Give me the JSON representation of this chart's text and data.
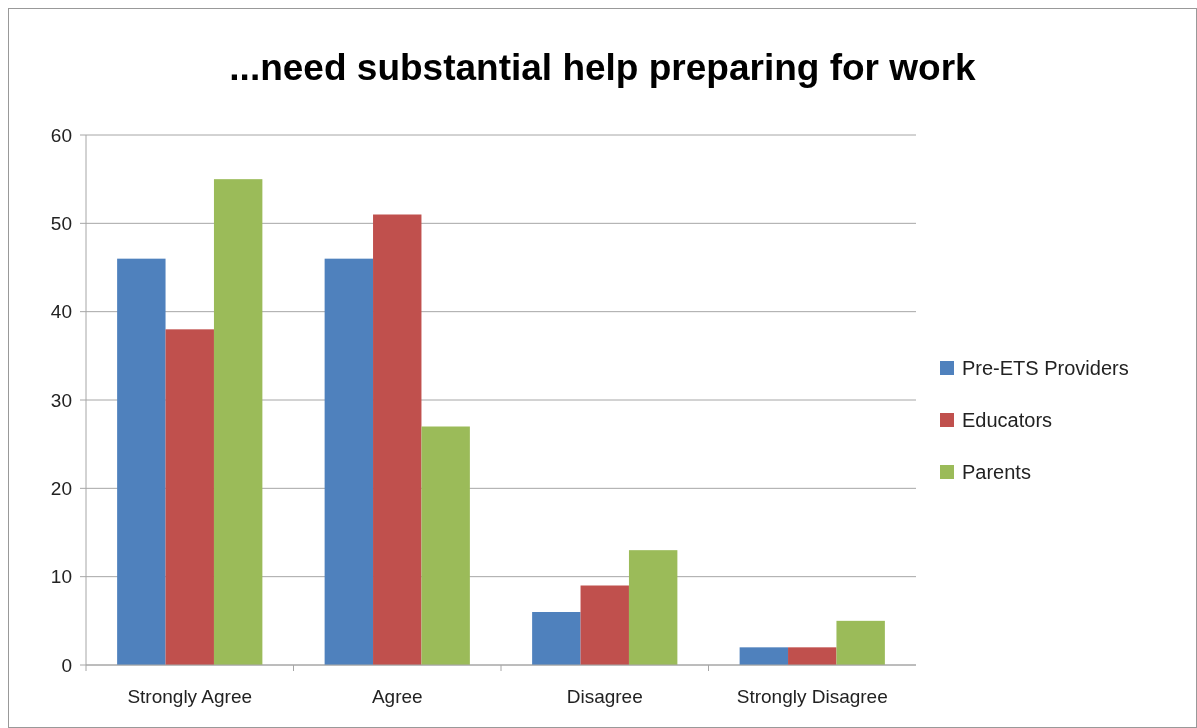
{
  "chart_data": {
    "type": "bar",
    "title": "...need substantial help preparing for work",
    "categories": [
      "Strongly Agree",
      "Agree",
      "Disagree",
      "Strongly Disagree"
    ],
    "series": [
      {
        "name": "Pre-ETS Providers",
        "color": "#4f81bd",
        "values": [
          46,
          46,
          6,
          2
        ]
      },
      {
        "name": "Educators",
        "color": "#c0504d",
        "values": [
          38,
          51,
          9,
          2
        ]
      },
      {
        "name": "Parents",
        "color": "#9bbb59",
        "values": [
          55,
          27,
          13,
          5
        ]
      }
    ],
    "ylim": [
      0,
      60
    ],
    "yticks": [
      0,
      10,
      20,
      30,
      40,
      50,
      60
    ],
    "grid": "y",
    "legend": "right"
  }
}
